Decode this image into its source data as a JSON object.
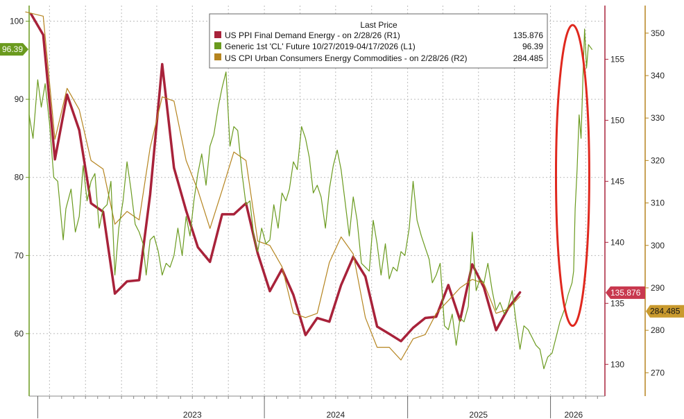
{
  "chart_data": {
    "type": "line",
    "title": "",
    "legend": {
      "title": "Last Price",
      "placement": "top-center",
      "entries": [
        {
          "label": "US PPI Final Demand Energy -  on 2/28/26  (R1)",
          "value": "135.876",
          "color": "#a8223a"
        },
        {
          "label": "Generic 1st 'CL' Future 10/27/2019-04/17/2026   (L1)",
          "value": "96.39",
          "color": "#6a9a1e"
        },
        {
          "label": "US CPI Urban Consumers Energy Commodities -  on 2/28/26  (R2)",
          "value": "284.485",
          "color": "#b5841f"
        }
      ]
    },
    "x_axis": {
      "type": "date",
      "range": [
        "2022-05-10",
        "2026-05-20"
      ],
      "year_labels": [
        {
          "label": "2023",
          "at": "2023-07-01"
        },
        {
          "label": "2024",
          "at": "2024-07-01"
        },
        {
          "label": "2025",
          "at": "2025-07-01"
        },
        {
          "label": "2026",
          "at": "2026-03-01"
        }
      ],
      "year_boundaries": [
        "2022-06-01",
        "2024-01-01",
        "2025-01-01",
        "2026-01-01"
      ]
    },
    "axes": {
      "left": {
        "range": [
          52,
          102
        ],
        "ticks": [
          60,
          70,
          80,
          90,
          100
        ],
        "color": "#6a9a1e"
      },
      "right1": {
        "range": [
          127.4,
          159.4
        ],
        "ticks": [
          130,
          135,
          140,
          145,
          150,
          155
        ],
        "color": "#a8223a"
      },
      "right2": {
        "range": [
          264.5,
          356.5
        ],
        "ticks": [
          270,
          280,
          290,
          300,
          310,
          320,
          330,
          340,
          350
        ],
        "color": "#b5841f"
      }
    },
    "grid": true,
    "value_tags": {
      "left": {
        "label": "96.39",
        "value": 96.39
      },
      "right1": {
        "label": "135.876",
        "value": 135.876
      },
      "right2": {
        "label": "284.485",
        "value": 284.485
      }
    },
    "annotation": {
      "type": "ellipse",
      "color": "#e0281e",
      "x_from": "2026-01-15",
      "x_to": "2026-04-10",
      "y_axis": "left",
      "y_from": 61,
      "y_to": 99.5
    },
    "series": [
      {
        "name": "US PPI Final Demand Energy -  on 2/28/26  (R1)",
        "axis": "right1",
        "color": "#a8223a",
        "points": [
          [
            "2022-05-15",
            158.7
          ],
          [
            "2022-06-15",
            157.0
          ],
          [
            "2022-07-15",
            146.8
          ],
          [
            "2022-08-15",
            152.1
          ],
          [
            "2022-09-15",
            149.2
          ],
          [
            "2022-10-15",
            143.2
          ],
          [
            "2022-11-15",
            142.5
          ],
          [
            "2022-12-15",
            135.8
          ],
          [
            "2023-01-15",
            136.8
          ],
          [
            "2023-02-15",
            136.9
          ],
          [
            "2023-03-15",
            143.9
          ],
          [
            "2023-04-15",
            154.6
          ],
          [
            "2023-05-15",
            146.1
          ],
          [
            "2023-06-15",
            142.6
          ],
          [
            "2023-07-15",
            139.6
          ],
          [
            "2023-08-15",
            138.4
          ],
          [
            "2023-09-15",
            142.3
          ],
          [
            "2023-10-15",
            142.3
          ],
          [
            "2023-11-15",
            143.2
          ],
          [
            "2023-12-15",
            139.1
          ],
          [
            "2024-01-15",
            136.0
          ],
          [
            "2024-02-15",
            137.8
          ],
          [
            "2024-03-15",
            135.7
          ],
          [
            "2024-04-15",
            132.4
          ],
          [
            "2024-05-15",
            133.8
          ],
          [
            "2024-06-15",
            133.5
          ],
          [
            "2024-07-15",
            136.5
          ],
          [
            "2024-08-15",
            138.8
          ],
          [
            "2024-09-15",
            137.2
          ],
          [
            "2024-10-15",
            133.1
          ],
          [
            "2024-11-15",
            132.5
          ],
          [
            "2024-12-15",
            131.9
          ],
          [
            "2025-01-15",
            133.0
          ],
          [
            "2025-02-15",
            133.8
          ],
          [
            "2025-03-15",
            133.9
          ],
          [
            "2025-04-15",
            136.5
          ],
          [
            "2025-05-15",
            133.6
          ],
          [
            "2025-06-15",
            138.2
          ],
          [
            "2025-07-15",
            136.3
          ],
          [
            "2025-08-15",
            132.8
          ],
          [
            "2025-09-15",
            134.6
          ],
          [
            "2025-10-15",
            135.9
          ]
        ]
      },
      {
        "name": "US CPI Urban Consumers Energy Commodities -  on 2/28/26  (R2)",
        "axis": "right2",
        "color": "#b5841f",
        "points": [
          [
            "2022-05-01",
            355.0
          ],
          [
            "2022-06-15",
            354.0
          ],
          [
            "2022-07-15",
            325.0
          ],
          [
            "2022-08-15",
            337.0
          ],
          [
            "2022-09-15",
            332.0
          ],
          [
            "2022-10-15",
            320.0
          ],
          [
            "2022-11-15",
            318.0
          ],
          [
            "2022-12-15",
            305.0
          ],
          [
            "2023-01-15",
            308.0
          ],
          [
            "2023-02-15",
            306.0
          ],
          [
            "2023-03-15",
            323.0
          ],
          [
            "2023-04-15",
            335.0
          ],
          [
            "2023-05-15",
            334.0
          ],
          [
            "2023-06-15",
            320.0
          ],
          [
            "2023-07-15",
            313.0
          ],
          [
            "2023-08-15",
            304.0
          ],
          [
            "2023-09-15",
            313.0
          ],
          [
            "2023-10-15",
            322.0
          ],
          [
            "2023-11-15",
            320.0
          ],
          [
            "2023-12-15",
            301.0
          ],
          [
            "2024-01-15",
            300.0
          ],
          [
            "2024-02-15",
            295.0
          ],
          [
            "2024-03-15",
            284.0
          ],
          [
            "2024-04-15",
            283.0
          ],
          [
            "2024-05-15",
            284.0
          ],
          [
            "2024-06-15",
            296.0
          ],
          [
            "2024-07-15",
            302.0
          ],
          [
            "2024-08-15",
            298.0
          ],
          [
            "2024-09-15",
            283.0
          ],
          [
            "2024-10-15",
            276.0
          ],
          [
            "2024-11-15",
            276.0
          ],
          [
            "2024-12-15",
            273.0
          ],
          [
            "2025-01-15",
            278.0
          ],
          [
            "2025-02-15",
            279.0
          ],
          [
            "2025-03-15",
            284.0
          ],
          [
            "2025-04-15",
            287.0
          ],
          [
            "2025-05-15",
            290.0
          ],
          [
            "2025-06-15",
            292.0
          ],
          [
            "2025-07-15",
            291.0
          ],
          [
            "2025-08-15",
            284.0
          ],
          [
            "2025-09-15",
            285.0
          ],
          [
            "2025-10-15",
            288.0
          ]
        ]
      },
      {
        "name": "Generic 1st 'CL' Future 10/27/2019-04/17/2026   (L1)",
        "axis": "left",
        "color": "#6a9a1e",
        "points": [
          [
            "2022-05-10",
            88.0
          ],
          [
            "2022-05-20",
            85.0
          ],
          [
            "2022-06-01",
            92.5
          ],
          [
            "2022-06-10",
            89.0
          ],
          [
            "2022-06-20",
            92.0
          ],
          [
            "2022-07-01",
            87.0
          ],
          [
            "2022-07-12",
            80.0
          ],
          [
            "2022-07-22",
            79.5
          ],
          [
            "2022-08-05",
            72.0
          ],
          [
            "2022-08-12",
            76.0
          ],
          [
            "2022-08-25",
            78.5
          ],
          [
            "2022-09-05",
            73.0
          ],
          [
            "2022-09-15",
            75.0
          ],
          [
            "2022-09-25",
            81.5
          ],
          [
            "2022-10-05",
            77.0
          ],
          [
            "2022-10-15",
            79.5
          ],
          [
            "2022-10-25",
            80.5
          ],
          [
            "2022-11-05",
            73.5
          ],
          [
            "2022-11-15",
            76.0
          ],
          [
            "2022-11-25",
            76.5
          ],
          [
            "2022-12-05",
            79.5
          ],
          [
            "2022-12-15",
            67.5
          ],
          [
            "2022-12-25",
            73.5
          ],
          [
            "2023-01-05",
            77.0
          ],
          [
            "2023-01-15",
            82.0
          ],
          [
            "2023-01-25",
            78.5
          ],
          [
            "2023-02-05",
            74.0
          ],
          [
            "2023-02-15",
            73.0
          ],
          [
            "2023-02-25",
            71.5
          ],
          [
            "2023-03-05",
            67.5
          ],
          [
            "2023-03-15",
            72.0
          ],
          [
            "2023-03-25",
            72.5
          ],
          [
            "2023-04-05",
            70.5
          ],
          [
            "2023-04-15",
            67.5
          ],
          [
            "2023-04-25",
            69.0
          ],
          [
            "2023-05-05",
            68.5
          ],
          [
            "2023-05-15",
            70.0
          ],
          [
            "2023-05-25",
            73.5
          ],
          [
            "2023-06-05",
            70.0
          ],
          [
            "2023-06-15",
            75.0
          ],
          [
            "2023-06-25",
            72.5
          ],
          [
            "2023-07-05",
            77.0
          ],
          [
            "2023-07-15",
            80.5
          ],
          [
            "2023-07-25",
            83.0
          ],
          [
            "2023-08-05",
            79.0
          ],
          [
            "2023-08-15",
            84.0
          ],
          [
            "2023-08-25",
            85.5
          ],
          [
            "2023-09-05",
            89.0
          ],
          [
            "2023-09-15",
            91.5
          ],
          [
            "2023-09-25",
            93.5
          ],
          [
            "2023-10-05",
            84.0
          ],
          [
            "2023-10-15",
            86.5
          ],
          [
            "2023-10-25",
            86.0
          ],
          [
            "2023-11-05",
            80.5
          ],
          [
            "2023-11-15",
            76.5
          ],
          [
            "2023-11-25",
            77.0
          ],
          [
            "2023-12-05",
            72.5
          ],
          [
            "2023-12-15",
            70.5
          ],
          [
            "2023-12-25",
            73.5
          ],
          [
            "2024-01-05",
            71.5
          ],
          [
            "2024-01-15",
            72.0
          ],
          [
            "2024-01-25",
            76.5
          ],
          [
            "2024-02-05",
            73.5
          ],
          [
            "2024-02-15",
            78.0
          ],
          [
            "2024-02-25",
            77.0
          ],
          [
            "2024-03-05",
            78.5
          ],
          [
            "2024-03-15",
            82.0
          ],
          [
            "2024-03-25",
            81.0
          ],
          [
            "2024-04-05",
            86.5
          ],
          [
            "2024-04-15",
            85.0
          ],
          [
            "2024-04-25",
            82.5
          ],
          [
            "2024-05-05",
            78.0
          ],
          [
            "2024-05-15",
            79.0
          ],
          [
            "2024-05-25",
            77.5
          ],
          [
            "2024-06-05",
            73.5
          ],
          [
            "2024-06-15",
            78.5
          ],
          [
            "2024-06-25",
            81.5
          ],
          [
            "2024-07-05",
            83.5
          ],
          [
            "2024-07-15",
            81.0
          ],
          [
            "2024-07-25",
            77.0
          ],
          [
            "2024-08-05",
            72.5
          ],
          [
            "2024-08-15",
            77.5
          ],
          [
            "2024-08-25",
            74.5
          ],
          [
            "2024-09-05",
            69.0
          ],
          [
            "2024-09-15",
            68.5
          ],
          [
            "2024-09-25",
            68.0
          ],
          [
            "2024-10-05",
            74.5
          ],
          [
            "2024-10-15",
            71.5
          ],
          [
            "2024-10-25",
            67.5
          ],
          [
            "2024-11-05",
            71.5
          ],
          [
            "2024-11-15",
            67.0
          ],
          [
            "2024-11-25",
            68.5
          ],
          [
            "2024-12-05",
            68.0
          ],
          [
            "2024-12-15",
            70.5
          ],
          [
            "2024-12-25",
            70.0
          ],
          [
            "2025-01-05",
            73.5
          ],
          [
            "2025-01-15",
            79.5
          ],
          [
            "2025-01-25",
            74.5
          ],
          [
            "2025-02-05",
            72.5
          ],
          [
            "2025-02-15",
            71.0
          ],
          [
            "2025-02-25",
            69.5
          ],
          [
            "2025-03-05",
            66.5
          ],
          [
            "2025-03-15",
            67.5
          ],
          [
            "2025-03-25",
            69.0
          ],
          [
            "2025-04-05",
            61.0
          ],
          [
            "2025-04-15",
            60.5
          ],
          [
            "2025-04-25",
            62.5
          ],
          [
            "2025-05-05",
            58.5
          ],
          [
            "2025-05-15",
            62.0
          ],
          [
            "2025-05-25",
            61.5
          ],
          [
            "2025-06-05",
            63.5
          ],
          [
            "2025-06-15",
            73.0
          ],
          [
            "2025-06-25",
            65.5
          ],
          [
            "2025-07-05",
            67.0
          ],
          [
            "2025-07-15",
            66.5
          ],
          [
            "2025-07-25",
            69.0
          ],
          [
            "2025-08-05",
            65.5
          ],
          [
            "2025-08-15",
            63.0
          ],
          [
            "2025-08-25",
            64.0
          ],
          [
            "2025-09-05",
            62.5
          ],
          [
            "2025-09-15",
            63.5
          ],
          [
            "2025-09-25",
            65.5
          ],
          [
            "2025-10-05",
            61.5
          ],
          [
            "2025-10-15",
            58.0
          ],
          [
            "2025-10-25",
            61.0
          ],
          [
            "2025-11-05",
            60.5
          ],
          [
            "2025-11-15",
            59.5
          ],
          [
            "2025-11-25",
            58.5
          ],
          [
            "2025-12-05",
            58.0
          ],
          [
            "2025-12-15",
            55.5
          ],
          [
            "2025-12-25",
            57.0
          ],
          [
            "2026-01-05",
            57.5
          ],
          [
            "2026-01-15",
            59.5
          ],
          [
            "2026-01-25",
            61.5
          ],
          [
            "2026-02-05",
            63.0
          ],
          [
            "2026-02-15",
            65.0
          ],
          [
            "2026-02-25",
            66.5
          ],
          [
            "2026-03-01",
            68.0
          ],
          [
            "2026-03-05",
            76.0
          ],
          [
            "2026-03-10",
            81.0
          ],
          [
            "2026-03-15",
            88.0
          ],
          [
            "2026-03-20",
            85.0
          ],
          [
            "2026-03-25",
            93.0
          ],
          [
            "2026-03-29",
            99.0
          ],
          [
            "2026-04-03",
            94.0
          ],
          [
            "2026-04-08",
            97.0
          ],
          [
            "2026-04-17",
            96.39
          ]
        ]
      }
    ]
  }
}
